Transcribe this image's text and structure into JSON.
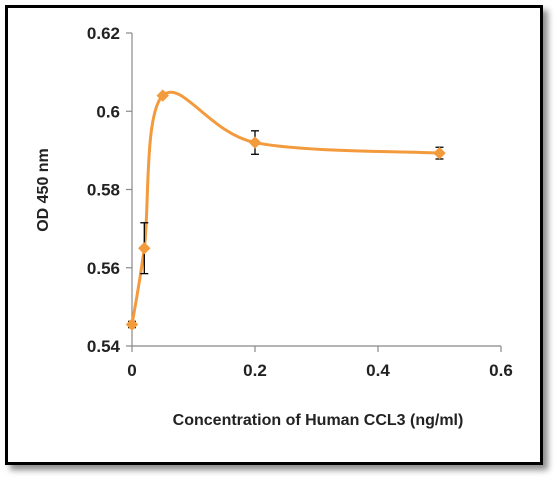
{
  "chart_data": {
    "type": "line",
    "title": "",
    "xlabel": "Concentration of Human CCL3 (ng/ml)",
    "ylabel": "OD 450 nm",
    "xlim": [
      0,
      0.6
    ],
    "ylim": [
      0.54,
      0.62
    ],
    "x_ticks": [
      "0",
      "0.2",
      "0.4",
      "0.6"
    ],
    "y_ticks": [
      "0.54",
      "0.56",
      "0.58",
      "0.6",
      "0.62"
    ],
    "grid": false,
    "legend": "none",
    "smooth": true,
    "series": [
      {
        "color": "#f39a3c",
        "marker": "diamond",
        "points": [
          {
            "x": 0.0,
            "y": 0.5455,
            "err": 0.0008
          },
          {
            "x": 0.02,
            "y": 0.565,
            "err": 0.0065
          },
          {
            "x": 0.05,
            "y": 0.604,
            "err": 0.0
          },
          {
            "x": 0.2,
            "y": 0.592,
            "err": 0.003
          },
          {
            "x": 0.5,
            "y": 0.5893,
            "err": 0.0015
          }
        ]
      }
    ]
  }
}
